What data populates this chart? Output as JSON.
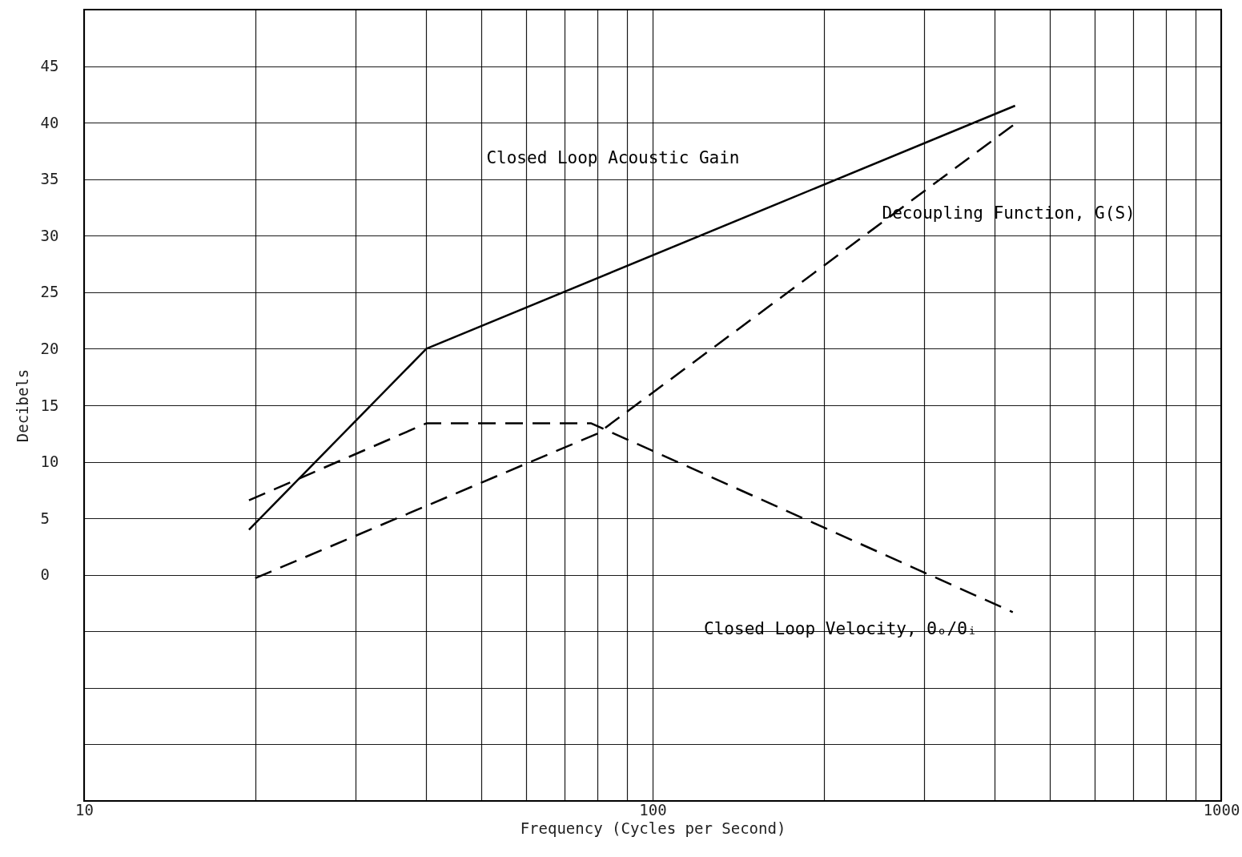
{
  "chart_data": {
    "type": "line",
    "xlabel": "Frequency (Cycles per Second)",
    "ylabel": "Decibels",
    "log": "x",
    "grid": true,
    "marker": "none",
    "xlim": [
      10,
      1000
    ],
    "ylim": [
      -20,
      50
    ],
    "xticks": [
      10,
      {
        "value": 20,
        "label": null
      },
      {
        "value": 30,
        "label": null
      },
      {
        "value": 40,
        "label": null
      },
      {
        "value": 50,
        "label": null
      },
      {
        "value": 60,
        "label": null
      },
      {
        "value": 70,
        "label": null
      },
      {
        "value": 80,
        "label": null
      },
      {
        "value": 90,
        "label": null
      },
      100,
      {
        "value": 200,
        "label": null
      },
      {
        "value": 300,
        "label": null
      },
      {
        "value": 400,
        "label": null
      },
      {
        "value": 500,
        "label": null
      },
      {
        "value": 600,
        "label": null
      },
      {
        "value": 700,
        "label": null
      },
      {
        "value": 800,
        "label": null
      },
      {
        "value": 900,
        "label": null
      },
      1000
    ],
    "yticks": [
      {
        "value": -15,
        "label": null
      },
      {
        "value": -10,
        "label": null
      },
      {
        "value": -5,
        "label": null
      },
      0,
      5,
      10,
      15,
      20,
      25,
      30,
      35,
      40,
      45
    ],
    "series": [
      {
        "name": "Closed Loop Acoustic Gain",
        "color": "#000000",
        "line_style": "solid",
        "x": [
          19.5,
          40,
          434
        ],
        "values": [
          4,
          20,
          41.5
        ]
      },
      {
        "name": "Decoupling Function, G(S)",
        "color": "#000000",
        "line_style": "dashed",
        "x": [
          20,
          80,
          434
        ],
        "values": [
          -0.3,
          12.5,
          39.9
        ]
      },
      {
        "name": "Closed Loop Velocity, Θₒ/Θᵢ",
        "color": "#000000",
        "line_style": "dashed",
        "x": [
          19.5,
          40,
          78,
          430
        ],
        "values": [
          6.6,
          13.4,
          13.4,
          -3.3
        ]
      }
    ]
  }
}
